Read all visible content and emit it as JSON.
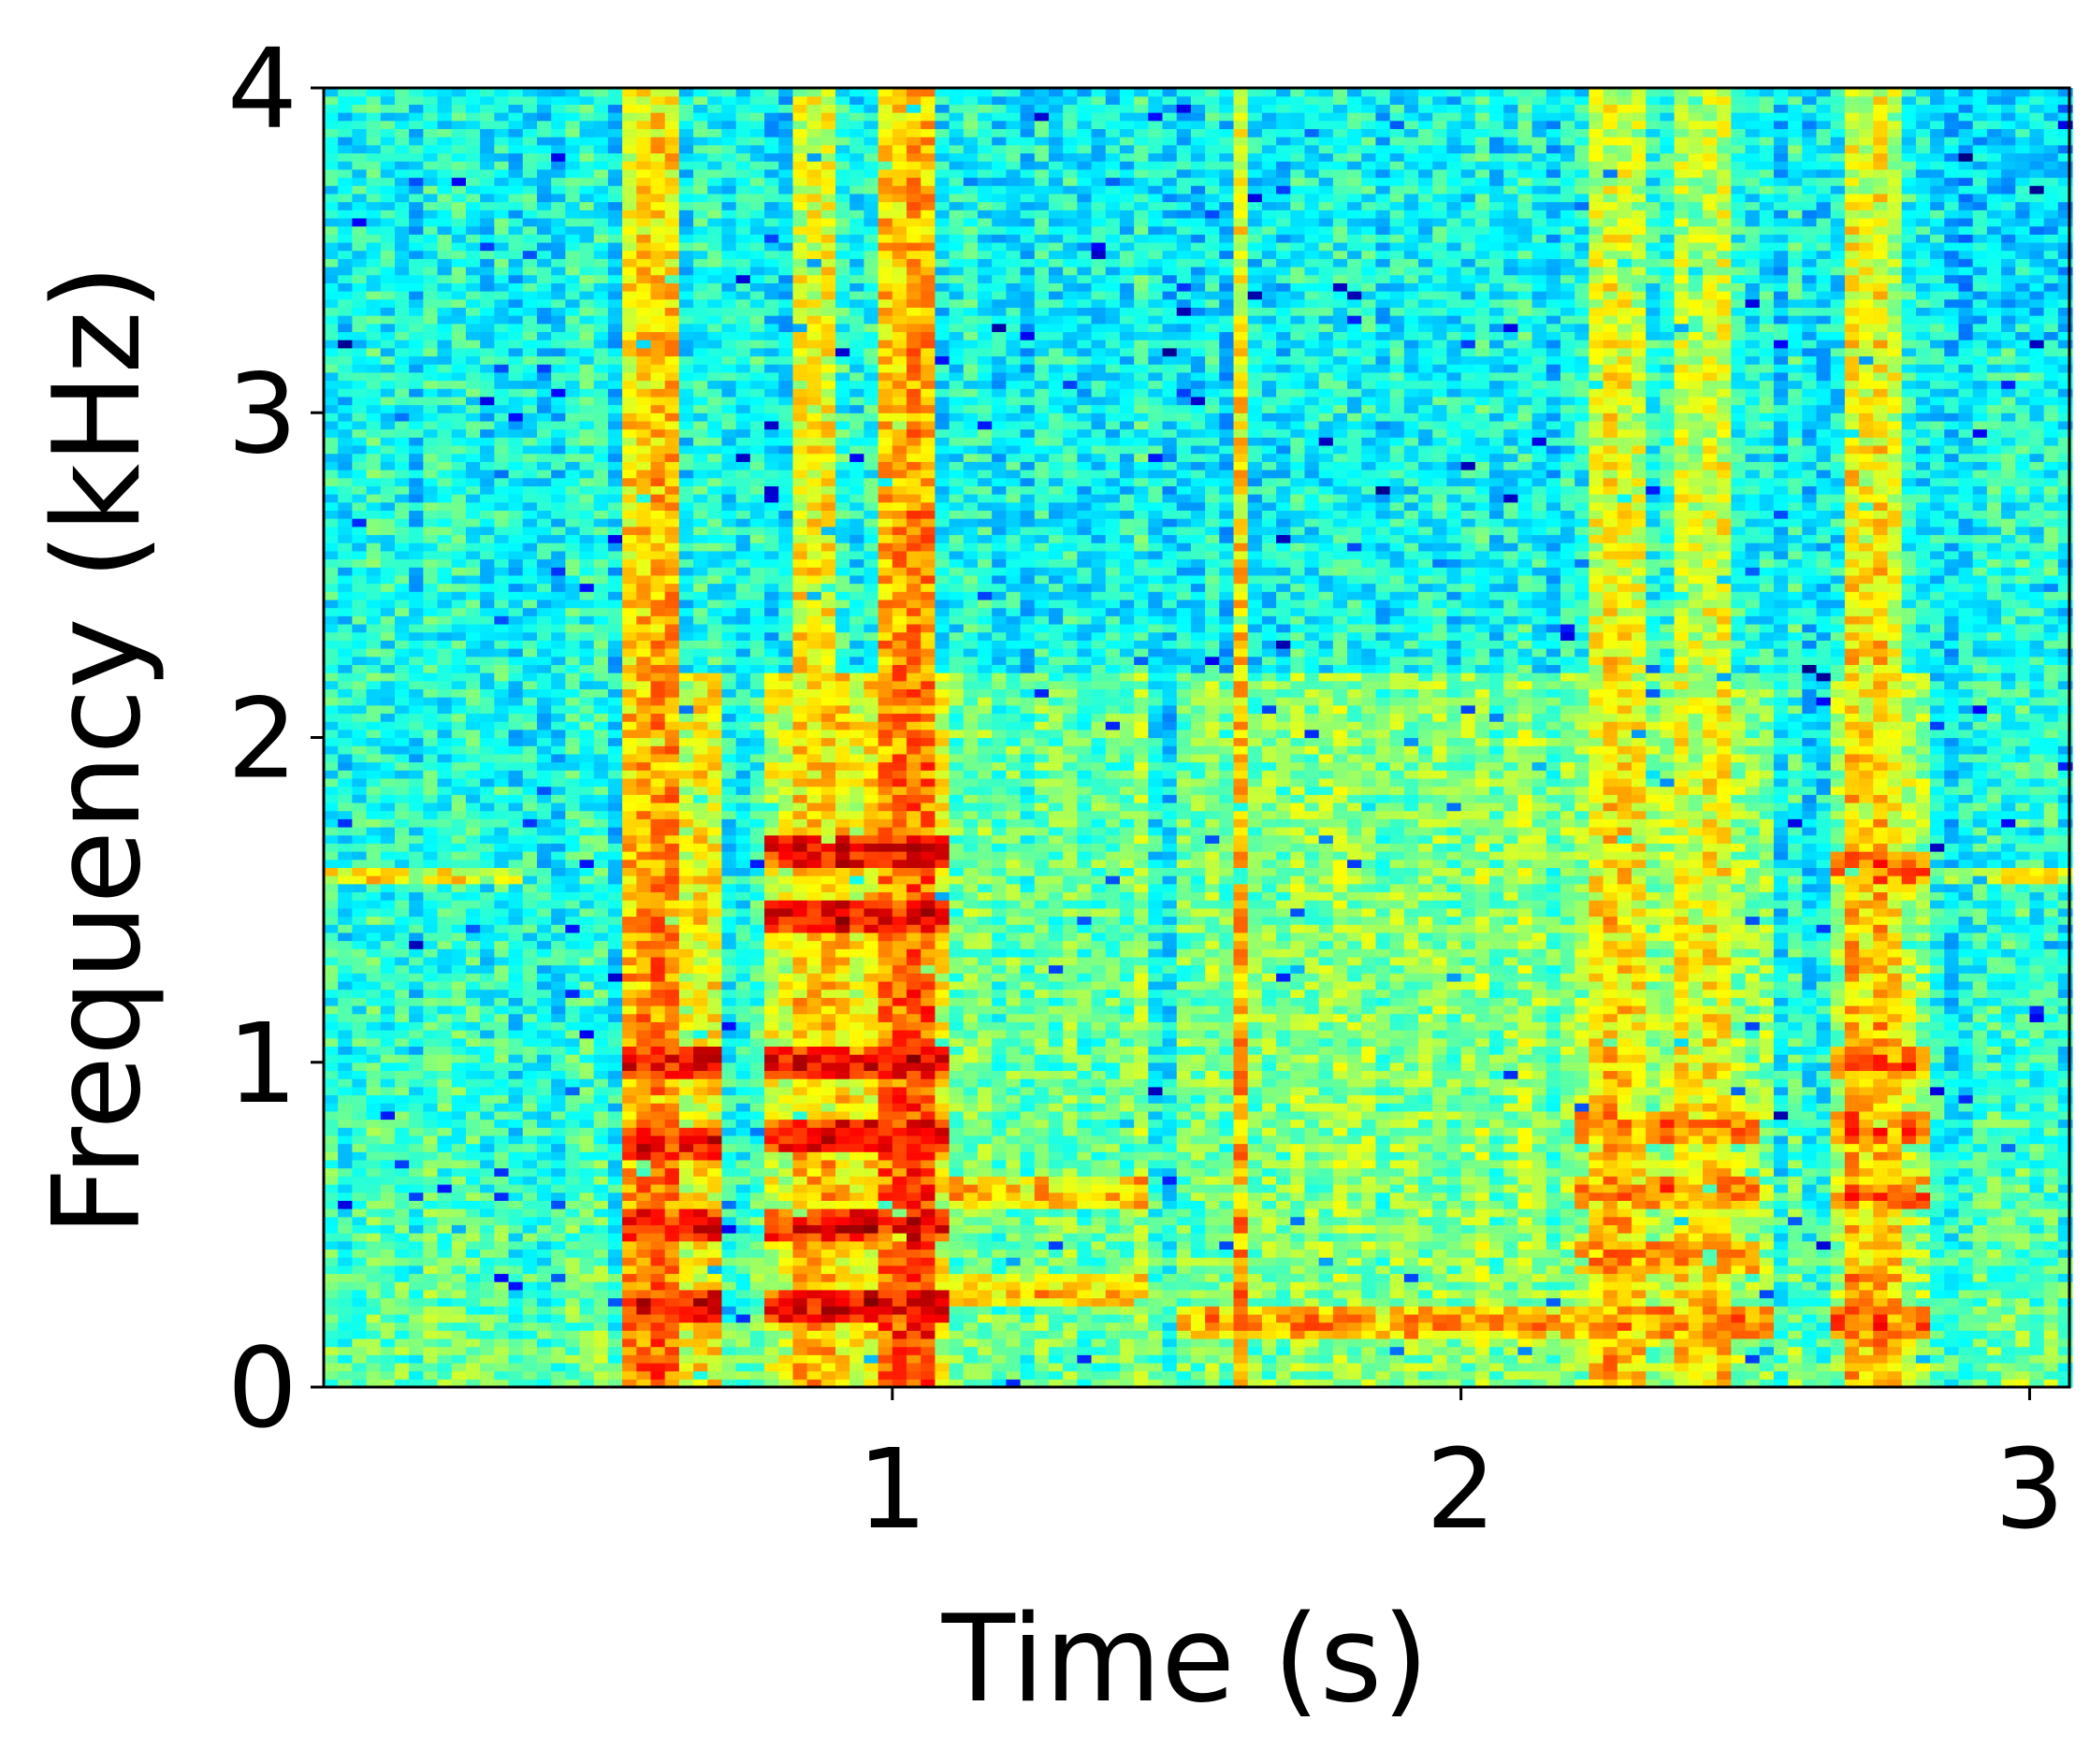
{
  "chart_data": {
    "type": "heatmap",
    "title": "",
    "xlabel": "Time (s)",
    "ylabel": "Frequency (kHz)",
    "xlim": [
      0,
      3.07
    ],
    "ylim": [
      0,
      4
    ],
    "x_ticks": [
      "1",
      "2",
      "3"
    ],
    "y_ticks": [
      "0",
      "1",
      "2",
      "3",
      "4"
    ],
    "colormap": "jet",
    "grid": false,
    "legend": "none",
    "time_resolution_s": 0.025,
    "frequency_resolution_khz": 0.025,
    "background_level": 0.38,
    "tonal_line_khz": 1.57,
    "tonal_line_level": 0.6,
    "events": [
      {
        "start_s": 0.53,
        "end_s": 0.57,
        "level": 0.74
      },
      {
        "start_s": 0.57,
        "end_s": 0.63,
        "level": 0.8
      },
      {
        "start_s": 0.83,
        "end_s": 0.9,
        "level": 0.72
      },
      {
        "start_s": 0.97,
        "end_s": 1.02,
        "level": 0.82
      },
      {
        "start_s": 1.02,
        "end_s": 1.08,
        "level": 0.8
      },
      {
        "start_s": 1.59,
        "end_s": 1.63,
        "level": 0.76
      },
      {
        "start_s": 2.22,
        "end_s": 2.32,
        "level": 0.68
      },
      {
        "start_s": 2.37,
        "end_s": 2.47,
        "level": 0.66
      },
      {
        "start_s": 2.67,
        "end_s": 2.77,
        "level": 0.7
      }
    ],
    "harmonic_tracks": [
      {
        "start_s": 0.53,
        "end_s": 0.7,
        "freq_khz": [
          0.25,
          0.5,
          0.75,
          1.0
        ],
        "level": 0.88
      },
      {
        "start_s": 0.78,
        "end_s": 1.1,
        "freq_khz": [
          0.25,
          0.5,
          0.77,
          1.0,
          1.45,
          1.65
        ],
        "level": 0.9
      },
      {
        "start_s": 1.1,
        "end_s": 1.45,
        "freq_khz": [
          0.3,
          0.6
        ],
        "level": 0.7
      },
      {
        "start_s": 1.5,
        "end_s": 2.55,
        "freq_khz": [
          0.2
        ],
        "level": 0.74
      },
      {
        "start_s": 2.2,
        "end_s": 2.52,
        "freq_khz": [
          0.4,
          0.6,
          0.8
        ],
        "level": 0.74
      },
      {
        "start_s": 2.65,
        "end_s": 2.82,
        "freq_khz": [
          0.2,
          0.6,
          0.8,
          1.0,
          1.6
        ],
        "level": 0.78
      }
    ],
    "quiet_region": {
      "start_s": 2.88,
      "end_s": 3.07,
      "from_khz": 3.2,
      "to_khz": 4.0,
      "level": 0.2
    }
  }
}
